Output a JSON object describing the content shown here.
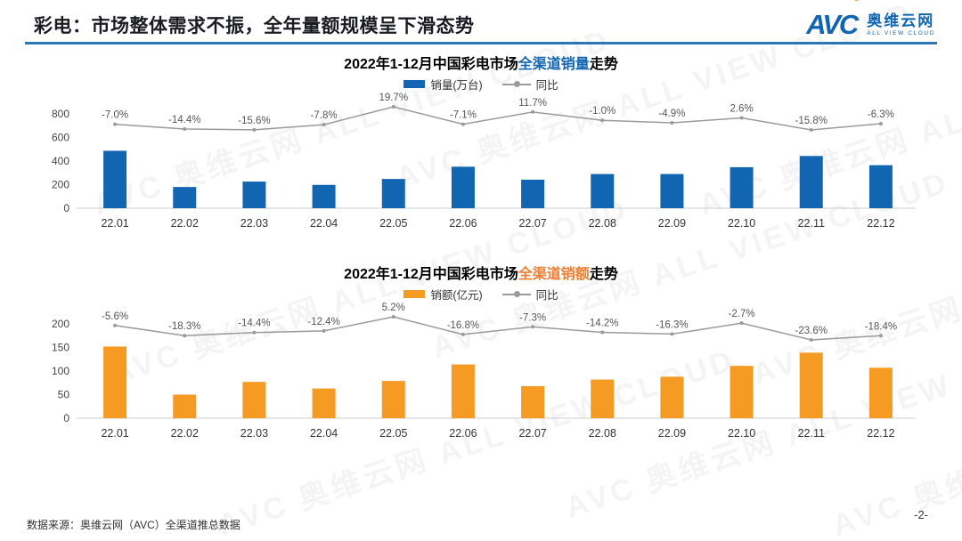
{
  "header": {
    "title": "彩电：市场整体需求不振，全年量额规模呈下滑态势",
    "logo": {
      "avc": "AVC",
      "name": "奥维云网",
      "subtitle": "ALL VIEW CLOUD"
    }
  },
  "watermark": "AVC 奥维云网 ALL VIEW CLOUD",
  "colors": {
    "header_rule": "#2e75b6",
    "volume_bar": "#1266b1",
    "revenue_bar": "#f59a23",
    "yoy_line": "#9a9a9a",
    "volume_highlight": "#1266b1",
    "revenue_highlight": "#ed7d31"
  },
  "footer": {
    "source": "数据来源：奥维云网（AVC）全渠道推总数据",
    "page": "-2-"
  },
  "chart_data": [
    {
      "type": "bar",
      "title": "2022年1-12月中国彩电市场全渠道销量走势",
      "title_parts": {
        "prefix": "2022年1-12月中国彩电市场",
        "highlight": "全渠道销量",
        "suffix": "走势"
      },
      "categories": [
        "22.01",
        "22.02",
        "22.03",
        "22.04",
        "22.05",
        "22.06",
        "22.07",
        "22.08",
        "22.09",
        "22.10",
        "22.11",
        "22.12"
      ],
      "series": [
        {
          "name": "销量(万台)",
          "type": "bar",
          "color": "#1266b1",
          "values": [
            487,
            180,
            226,
            198,
            248,
            352,
            242,
            290,
            290,
            348,
            443,
            365
          ]
        },
        {
          "name": "同比",
          "type": "line",
          "color": "#9a9a9a",
          "unit": "%",
          "values": [
            -7.0,
            -14.4,
            -15.6,
            -7.8,
            19.7,
            -7.1,
            11.7,
            -1.0,
            -4.9,
            2.6,
            -15.8,
            -6.3
          ]
        }
      ],
      "xlabel": "",
      "ylabel": "",
      "ylim": [
        0,
        800
      ],
      "yticks": [
        0,
        200,
        400,
        600,
        800
      ],
      "grid": false,
      "legend_position": "top"
    },
    {
      "type": "bar",
      "title": "2022年1-12月中国彩电市场全渠道销额走势",
      "title_parts": {
        "prefix": "2022年1-12月中国彩电市场",
        "highlight": "全渠道销额",
        "suffix": "走势"
      },
      "categories": [
        "22.01",
        "22.02",
        "22.03",
        "22.04",
        "22.05",
        "22.06",
        "22.07",
        "22.08",
        "22.09",
        "22.10",
        "22.11",
        "22.12"
      ],
      "series": [
        {
          "name": "销额(亿元)",
          "type": "bar",
          "color": "#f59a23",
          "values": [
            152,
            50,
            77,
            63,
            79,
            114,
            68,
            82,
            88,
            111,
            139,
            107
          ]
        },
        {
          "name": "同比",
          "type": "line",
          "color": "#9a9a9a",
          "unit": "%",
          "values": [
            -5.6,
            -18.3,
            -14.4,
            -12.4,
            5.2,
            -16.8,
            -7.3,
            -14.2,
            -16.3,
            -2.7,
            -23.6,
            -18.4
          ]
        }
      ],
      "xlabel": "",
      "ylabel": "",
      "ylim": [
        0,
        200
      ],
      "yticks": [
        0,
        50,
        100,
        150,
        200
      ],
      "grid": false,
      "legend_position": "top"
    }
  ]
}
